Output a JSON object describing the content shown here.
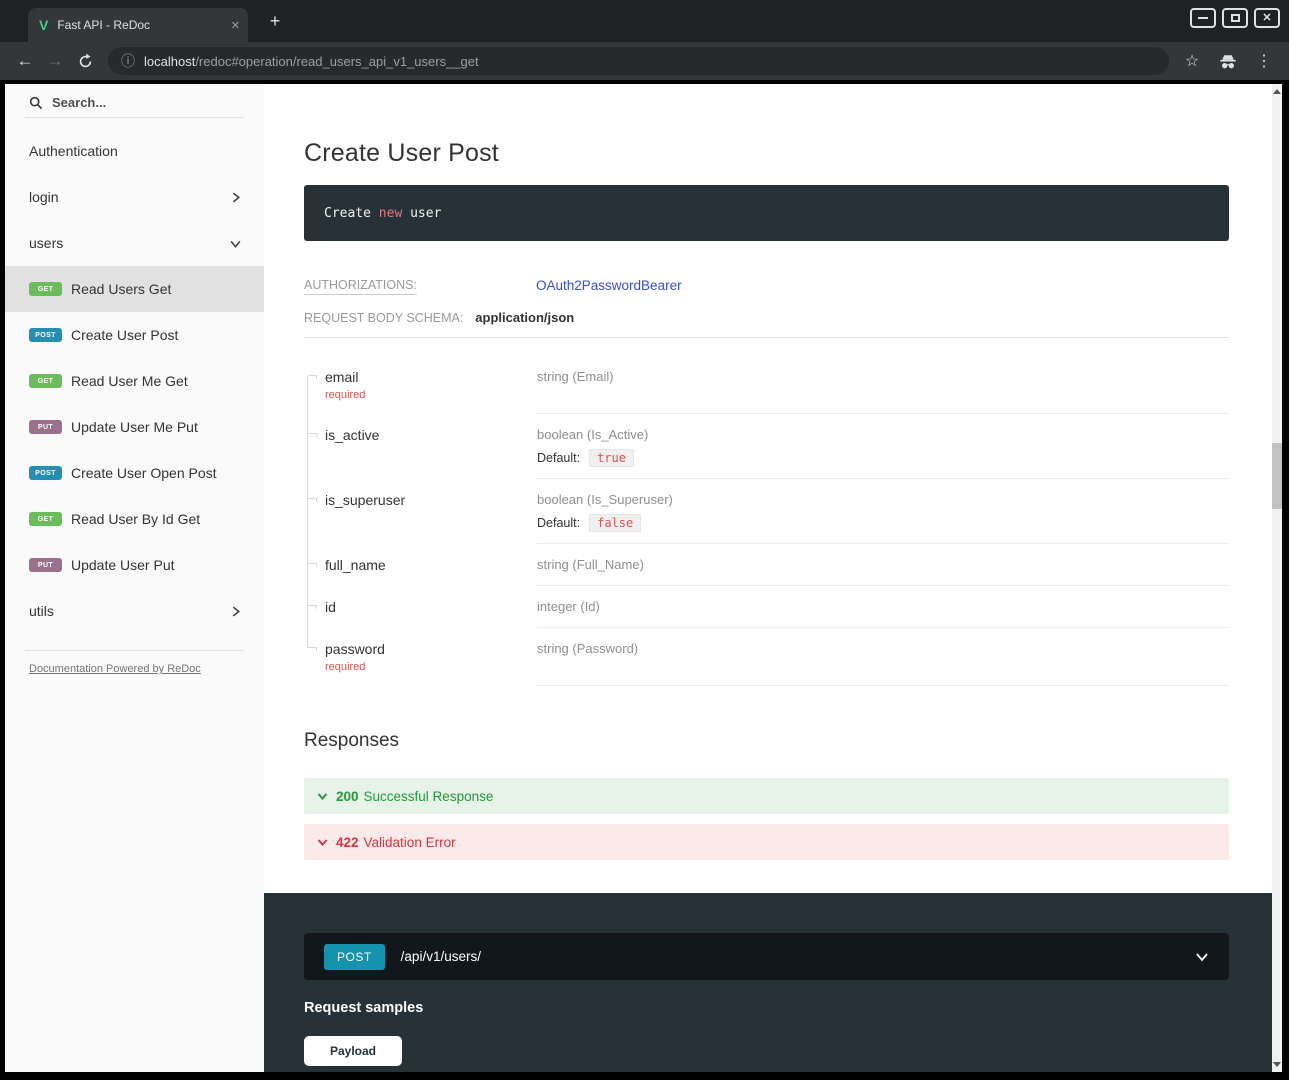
{
  "browser": {
    "tab_title": "Fast API - ReDoc",
    "favicon_letter": "V",
    "url_host": "localhost",
    "url_path": "/redoc#operation/read_users_api_v1_users__get"
  },
  "icons": {
    "back": "←",
    "forward": "→",
    "info": "ⓘ",
    "star": "☆",
    "kebab": "⋮",
    "plus": "+",
    "tab_close": "✕",
    "window_close": "✕"
  },
  "sidebar": {
    "search_placeholder": "Search...",
    "groups": [
      {
        "label": "Authentication",
        "chevron": "none"
      },
      {
        "label": "login",
        "chevron": "right"
      },
      {
        "label": "users",
        "chevron": "down"
      }
    ],
    "operations": [
      {
        "method": "GET",
        "label": "Read Users Get",
        "active": true
      },
      {
        "method": "POST",
        "label": "Create User Post",
        "active": false
      },
      {
        "method": "GET",
        "label": "Read User Me Get",
        "active": false
      },
      {
        "method": "PUT",
        "label": "Update User Me Put",
        "active": false
      },
      {
        "method": "POST",
        "label": "Create User Open Post",
        "active": false
      },
      {
        "method": "GET",
        "label": "Read User By Id Get",
        "active": false
      },
      {
        "method": "PUT",
        "label": "Update User Put",
        "active": false
      }
    ],
    "utils_label": "utils",
    "powered_by": "Documentation Powered by ReDoc"
  },
  "content": {
    "title": "Create User Post",
    "description_code": {
      "prefix": "Create ",
      "keyword": "new",
      "suffix": " user"
    },
    "authorizations": {
      "label": "AUTHORIZATIONS:",
      "value": "OAuth2PasswordBearer"
    },
    "request_body": {
      "label": "REQUEST BODY SCHEMA:",
      "value": "application/json"
    },
    "required_label": "required",
    "default_label": "Default:",
    "schema_fields": [
      {
        "name": "email",
        "required": true,
        "type": "string (Email)",
        "default": null
      },
      {
        "name": "is_active",
        "required": false,
        "type": "boolean (Is_Active)",
        "default": "true"
      },
      {
        "name": "is_superuser",
        "required": false,
        "type": "boolean (Is_Superuser)",
        "default": "false"
      },
      {
        "name": "full_name",
        "required": false,
        "type": "string (Full_Name)",
        "default": null
      },
      {
        "name": "id",
        "required": false,
        "type": "integer (Id)",
        "default": null
      },
      {
        "name": "password",
        "required": true,
        "type": "string (Password)",
        "default": null
      }
    ],
    "responses": {
      "heading": "Responses",
      "items": [
        {
          "code": "200",
          "label": "Successful Response",
          "kind": "success"
        },
        {
          "code": "422",
          "label": "Validation Error",
          "kind": "error"
        }
      ]
    }
  },
  "console": {
    "method": "POST",
    "path": "/api/v1/users/",
    "request_samples_label": "Request samples",
    "payload_tab": "Payload"
  },
  "colors": {
    "http_get": "#6bbd5b",
    "http_post": "#248fb2",
    "http_put": "#9b708b",
    "console_post_badge": "#1493af",
    "success_text": "#1f9c38",
    "success_bg": "#e7f2e8",
    "error_text": "#d9363e",
    "error_bg": "#fbeaea",
    "link": "#3b4ed8",
    "required": "#e2504c",
    "panel_dark": "#263238",
    "sidebar_bg": "#fafafa",
    "sidebar_active_bg": "#e1e1e1"
  }
}
